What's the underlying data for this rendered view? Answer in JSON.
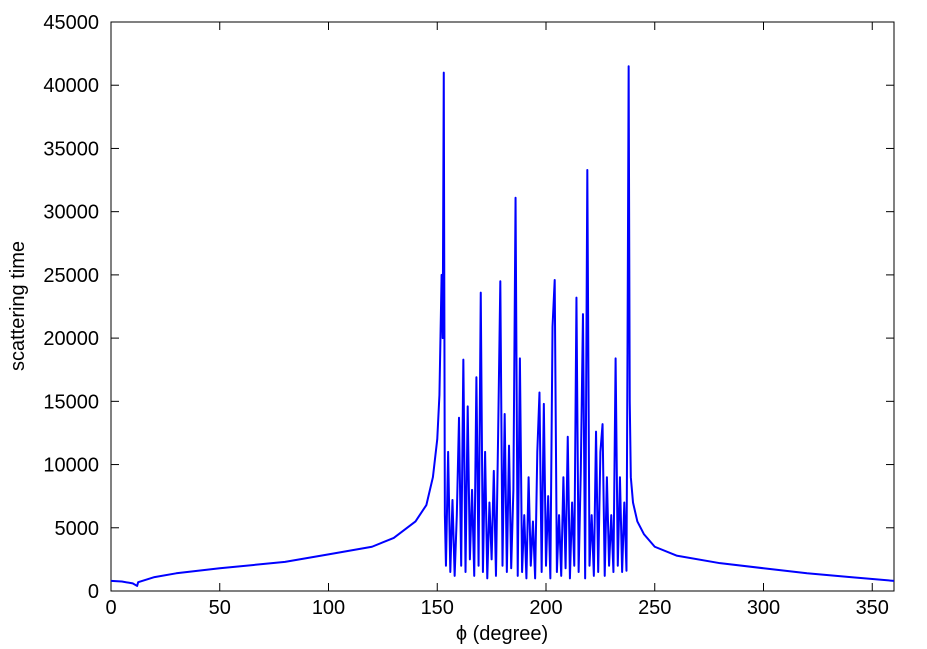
{
  "chart_data": {
    "type": "line",
    "xlabel": "ϕ (degree)",
    "ylabel": "scattering time",
    "xlim": [
      0,
      360
    ],
    "xticks": [
      0,
      50,
      100,
      150,
      200,
      250,
      300,
      350
    ],
    "ylim": [
      0,
      45000
    ],
    "yticks": [
      0,
      5000,
      10000,
      15000,
      20000,
      25000,
      30000,
      35000,
      40000,
      45000
    ],
    "grid": false,
    "series": [
      {
        "color": "#0000ff",
        "x": [
          0,
          5,
          10,
          12,
          12.5,
          20,
          30,
          50,
          80,
          100,
          120,
          130,
          140,
          145,
          148,
          150,
          151,
          152,
          152.5,
          153,
          153.5,
          154,
          155,
          156,
          157,
          158,
          159,
          160,
          161,
          162,
          163,
          164,
          165,
          166,
          167,
          168,
          169,
          170,
          171,
          172,
          173,
          174,
          175,
          176,
          177,
          178,
          179,
          180,
          181,
          182,
          183,
          184,
          185,
          186,
          187,
          188,
          189,
          190,
          191,
          192,
          193,
          194,
          195,
          196,
          197,
          198,
          199,
          200,
          201,
          202,
          203,
          204,
          205,
          206,
          207,
          208,
          209,
          210,
          211,
          212,
          213,
          214,
          215,
          216,
          217,
          218,
          219,
          220,
          221,
          222,
          223,
          224,
          225,
          226,
          227,
          228,
          229,
          230,
          231,
          232,
          233,
          234,
          235,
          236,
          237,
          237.5,
          238,
          238.5,
          239,
          240,
          242,
          245,
          250,
          260,
          280,
          300,
          320,
          340,
          360
        ],
        "values": [
          800,
          750,
          600,
          400,
          700,
          1100,
          1400,
          1800,
          2300,
          2900,
          3500,
          4200,
          5500,
          6800,
          9000,
          12000,
          15500,
          25000,
          20000,
          41000,
          6000,
          2000,
          11000,
          1500,
          7200,
          1200,
          6000,
          13700,
          2000,
          18300,
          1500,
          14600,
          2500,
          8000,
          1200,
          16900,
          2000,
          23600,
          1500,
          11000,
          1000,
          7000,
          2500,
          9500,
          1200,
          12500,
          24500,
          2000,
          14000,
          1500,
          11500,
          1800,
          8000,
          31100,
          1200,
          18400,
          1500,
          6000,
          1000,
          9000,
          2000,
          5500,
          1000,
          11000,
          15700,
          1500,
          14800,
          2000,
          7500,
          1000,
          20900,
          24600,
          1500,
          6000,
          1200,
          9000,
          1800,
          12200,
          1000,
          7000,
          2000,
          23200,
          1500,
          9500,
          21900,
          1000,
          33300,
          2000,
          6000,
          1200,
          12600,
          1500,
          11000,
          13200,
          1200,
          9000,
          2000,
          6000,
          1500,
          18400,
          2000,
          9000,
          1500,
          7000,
          1600,
          20000,
          41500,
          15000,
          9000,
          7000,
          5500,
          4500,
          3500,
          2800,
          2200,
          1800,
          1400,
          1100,
          800
        ]
      }
    ]
  }
}
